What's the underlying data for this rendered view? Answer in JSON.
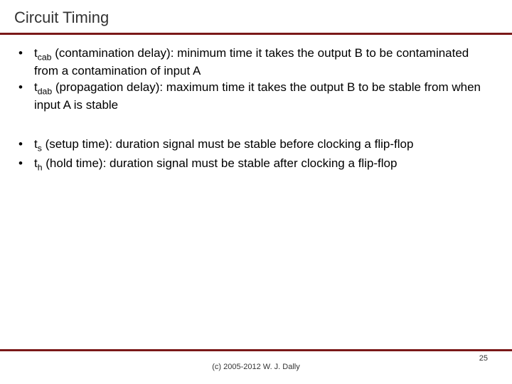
{
  "title": "Circuit Timing",
  "bullets_group1": [
    {
      "sym": "t",
      "sub": "cab",
      "rest": " (contamination delay): minimum time it takes the output B to be contaminated from a contamination of input A"
    },
    {
      "sym": "t",
      "sub": "dab",
      "rest": " (propagation delay): maximum time it takes the output B to be stable from when input A is stable"
    }
  ],
  "bullets_group2": [
    {
      "sym": "t",
      "sub": "s",
      "rest": " (setup time): duration signal must be stable before clocking a flip-flop"
    },
    {
      "sym": "t",
      "sub": "h",
      "rest": " (hold time): duration signal must be stable after clocking a flip-flop"
    }
  ],
  "copyright": "(c) 2005-2012 W. J. Dally",
  "page_number": "25",
  "colors": {
    "rule": "#7a1818",
    "text": "#000000",
    "title": "#333333",
    "background": "#ffffff"
  },
  "fontsize": {
    "title": 22,
    "body": 17,
    "footer": 11
  }
}
